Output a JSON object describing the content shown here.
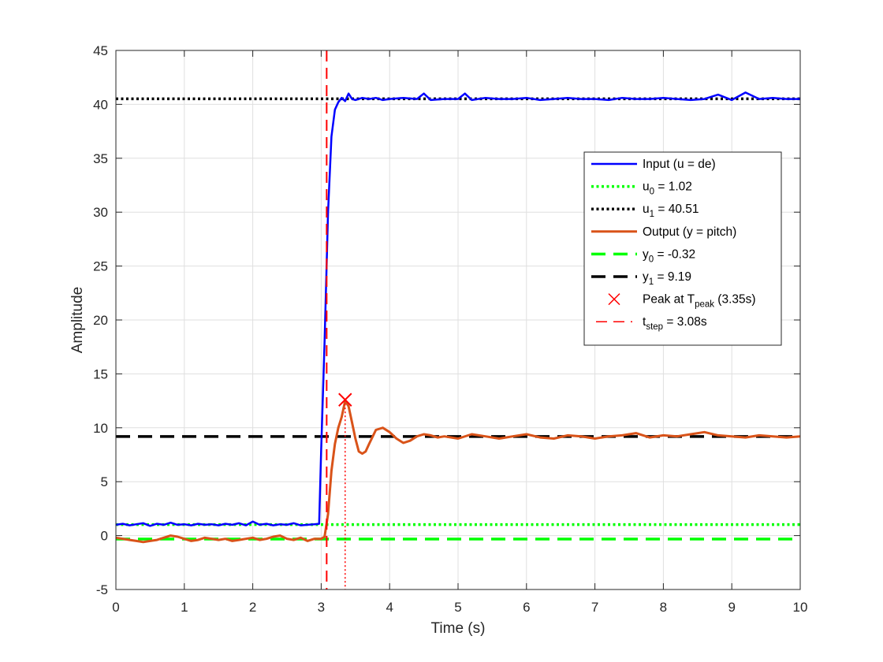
{
  "chart_data": {
    "type": "line",
    "xlabel": "Time (s)",
    "ylabel": "Amplitude",
    "xlim": [
      0,
      10
    ],
    "ylim": [
      -5,
      45
    ],
    "xticks": [
      "0",
      "1",
      "2",
      "3",
      "4",
      "5",
      "6",
      "7",
      "8",
      "9",
      "10"
    ],
    "yticks": [
      "-5",
      "0",
      "5",
      "10",
      "15",
      "20",
      "25",
      "30",
      "35",
      "40",
      "45"
    ],
    "grid": true,
    "legend_position": "right",
    "series": [
      {
        "name": "Input (u = de)",
        "color": "#0000ff",
        "style": "solid",
        "x": [
          0,
          0.1,
          0.2,
          0.3,
          0.4,
          0.5,
          0.6,
          0.7,
          0.8,
          0.9,
          1.0,
          1.1,
          1.2,
          1.3,
          1.4,
          1.5,
          1.6,
          1.7,
          1.8,
          1.9,
          2.0,
          2.1,
          2.2,
          2.3,
          2.4,
          2.5,
          2.6,
          2.7,
          2.8,
          2.9,
          2.97,
          3.0,
          3.05,
          3.1,
          3.15,
          3.2,
          3.25,
          3.3,
          3.35,
          3.4,
          3.45,
          3.5,
          3.6,
          3.7,
          3.8,
          3.9,
          4.0,
          4.2,
          4.4,
          4.5,
          4.6,
          4.8,
          5.0,
          5.1,
          5.2,
          5.4,
          5.6,
          5.8,
          6.0,
          6.2,
          6.4,
          6.6,
          6.8,
          7.0,
          7.2,
          7.4,
          7.6,
          7.8,
          8.0,
          8.2,
          8.4,
          8.6,
          8.8,
          9.0,
          9.2,
          9.4,
          9.6,
          9.8,
          10.0
        ],
        "values": [
          1.0,
          1.1,
          0.95,
          1.05,
          1.15,
          0.9,
          1.1,
          1.0,
          1.2,
          1.0,
          1.05,
          0.95,
          1.1,
          1.0,
          1.05,
          0.95,
          1.1,
          1.0,
          1.15,
          0.95,
          1.3,
          1.0,
          1.1,
          0.95,
          1.05,
          1.0,
          1.15,
          0.95,
          1.0,
          1.05,
          1.1,
          8.0,
          18.0,
          30.0,
          37.0,
          39.5,
          40.2,
          40.6,
          40.3,
          41.0,
          40.5,
          40.4,
          40.6,
          40.5,
          40.6,
          40.4,
          40.5,
          40.6,
          40.5,
          41.0,
          40.4,
          40.5,
          40.5,
          41.0,
          40.4,
          40.6,
          40.5,
          40.5,
          40.6,
          40.4,
          40.5,
          40.6,
          40.5,
          40.5,
          40.4,
          40.6,
          40.5,
          40.5,
          40.6,
          40.5,
          40.4,
          40.5,
          40.9,
          40.4,
          41.1,
          40.5,
          40.6,
          40.5,
          40.5
        ]
      },
      {
        "name": "u_0 = 1.02",
        "color": "#00ff00",
        "style": "dotted",
        "x": [
          0,
          10
        ],
        "values": [
          1.02,
          1.02
        ]
      },
      {
        "name": "u_1 = 40.51",
        "color": "#000000",
        "style": "dotted",
        "x": [
          0,
          10
        ],
        "values": [
          40.51,
          40.51
        ]
      },
      {
        "name": "Output (y = pitch)",
        "color": "#d95319",
        "style": "solid",
        "x": [
          0,
          0.1,
          0.2,
          0.3,
          0.4,
          0.5,
          0.6,
          0.7,
          0.8,
          0.9,
          1.0,
          1.1,
          1.2,
          1.3,
          1.4,
          1.5,
          1.6,
          1.7,
          1.8,
          1.9,
          2.0,
          2.1,
          2.2,
          2.3,
          2.4,
          2.5,
          2.6,
          2.7,
          2.8,
          2.9,
          3.0,
          3.05,
          3.1,
          3.15,
          3.2,
          3.25,
          3.3,
          3.35,
          3.4,
          3.45,
          3.5,
          3.55,
          3.6,
          3.65,
          3.7,
          3.8,
          3.9,
          4.0,
          4.1,
          4.2,
          4.3,
          4.4,
          4.5,
          4.6,
          4.7,
          4.8,
          5.0,
          5.2,
          5.4,
          5.6,
          5.8,
          6.0,
          6.2,
          6.4,
          6.6,
          6.8,
          7.0,
          7.2,
          7.4,
          7.6,
          7.8,
          8.0,
          8.2,
          8.4,
          8.6,
          8.8,
          9.0,
          9.2,
          9.4,
          9.6,
          9.8,
          10.0
        ],
        "values": [
          -0.2,
          -0.3,
          -0.4,
          -0.5,
          -0.6,
          -0.5,
          -0.4,
          -0.2,
          0.0,
          -0.1,
          -0.3,
          -0.5,
          -0.4,
          -0.2,
          -0.3,
          -0.4,
          -0.3,
          -0.5,
          -0.4,
          -0.3,
          -0.2,
          -0.4,
          -0.3,
          -0.1,
          0.0,
          -0.3,
          -0.4,
          -0.2,
          -0.5,
          -0.3,
          -0.3,
          -0.1,
          2.0,
          6.0,
          8.5,
          10.0,
          11.0,
          12.5,
          12.0,
          10.5,
          9.0,
          7.8,
          7.6,
          7.8,
          8.5,
          9.8,
          10.0,
          9.6,
          9.0,
          8.6,
          8.8,
          9.2,
          9.4,
          9.3,
          9.1,
          9.2,
          9.0,
          9.4,
          9.2,
          9.0,
          9.2,
          9.4,
          9.1,
          9.0,
          9.3,
          9.2,
          9.0,
          9.2,
          9.3,
          9.5,
          9.1,
          9.3,
          9.2,
          9.4,
          9.6,
          9.3,
          9.2,
          9.1,
          9.3,
          9.2,
          9.1,
          9.2
        ]
      },
      {
        "name": "y_0 = -0.32",
        "color": "#00ff00",
        "style": "dashed",
        "x": [
          0,
          10
        ],
        "values": [
          -0.32,
          -0.32
        ]
      },
      {
        "name": "y_1 = 9.19",
        "color": "#000000",
        "style": "dashed",
        "x": [
          0,
          10
        ],
        "values": [
          9.19,
          9.19
        ]
      }
    ],
    "peak": {
      "name": "Peak at T_peak (3.35s)",
      "x": 3.35,
      "y": 12.6,
      "color": "#ff0000"
    },
    "step": {
      "name": "t_step = 3.08s",
      "x": 3.08,
      "color": "#ff0000"
    },
    "legend": {
      "items": [
        {
          "key": "input",
          "text": "Input (u = de)"
        },
        {
          "key": "u0",
          "main": "u",
          "sub": "0",
          "rest": " = 1.02"
        },
        {
          "key": "u1",
          "main": "u",
          "sub": "1",
          "rest": " = 40.51"
        },
        {
          "key": "output",
          "text": "Output (y = pitch)"
        },
        {
          "key": "y0",
          "main": "y",
          "sub": "0",
          "rest": " = -0.32"
        },
        {
          "key": "y1",
          "main": "y",
          "sub": "1",
          "rest": " = 9.19"
        },
        {
          "key": "peak",
          "main": "Peak at T",
          "sub": "peak",
          "rest": " (3.35s)"
        },
        {
          "key": "step",
          "main": "t",
          "sub": "step",
          "rest": " = 3.08s"
        }
      ]
    }
  }
}
